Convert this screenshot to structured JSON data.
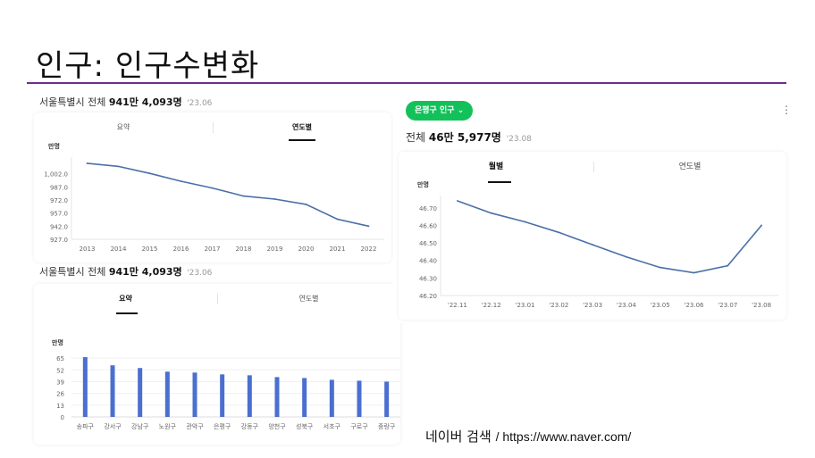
{
  "slide": {
    "title": "인구: 인구수변화",
    "source_label": "네이버 검색",
    "source_url": "/ https://www.naver.com/"
  },
  "panel1": {
    "region": "서울특별시 전체",
    "population": "941만 4,093명",
    "date": "'23.06",
    "tabs": [
      "요약",
      "연도별"
    ],
    "active_tab": 1
  },
  "panel2": {
    "region": "서울특별시 전체",
    "population": "941만 4,093명",
    "date": "'23.06",
    "tabs": [
      "요약",
      "연도별"
    ],
    "active_tab": 0
  },
  "panel3": {
    "dropdown_label": "은평구 인구",
    "region": "전체",
    "population": "46만 5,977명",
    "date": "'23.08",
    "tabs": [
      "월별",
      "연도별"
    ],
    "active_tab": 0
  },
  "chart_data": [
    {
      "type": "line",
      "unit": "만명",
      "x": [
        "2013",
        "2014",
        "2015",
        "2016",
        "2017",
        "2018",
        "2019",
        "2020",
        "2021",
        "2022"
      ],
      "y": [
        1014.0,
        1010.5,
        1002.5,
        993.5,
        985.7,
        976.5,
        973.0,
        967.0,
        950.0,
        942.0
      ],
      "yticks": [
        "1,002.0",
        "987.0",
        "972.0",
        "957.0",
        "942.0",
        "927.0"
      ],
      "ylim": [
        927.0,
        1017.0
      ],
      "color": "#4a6fa8"
    },
    {
      "type": "bar",
      "unit": "만명",
      "categories": [
        "송파구",
        "강서구",
        "강남구",
        "노원구",
        "관악구",
        "은평구",
        "강동구",
        "양천구",
        "성북구",
        "서초구",
        "구로구",
        "중랑구"
      ],
      "values": [
        66,
        57,
        54,
        50,
        49,
        47,
        46,
        44,
        43,
        41,
        40,
        39
      ],
      "yticks": [
        "65",
        "52",
        "39",
        "26",
        "13",
        "0"
      ],
      "ylim": [
        0,
        70
      ],
      "color": "#4a6fd0"
    },
    {
      "type": "line",
      "unit": "만명",
      "x": [
        "'22.11",
        "'22.12",
        "'23.01",
        "'23.02",
        "'23.03",
        "'23.04",
        "'23.05",
        "'23.06",
        "'23.07",
        "'23.08"
      ],
      "y": [
        46.74,
        46.67,
        46.62,
        46.56,
        46.49,
        46.42,
        46.36,
        46.33,
        46.37,
        46.6
      ],
      "yticks": [
        "46.70",
        "46.60",
        "46.50",
        "46.40",
        "46.30",
        "46.20"
      ],
      "ylim": [
        46.2,
        46.75
      ],
      "color": "#4a6fa8"
    }
  ]
}
